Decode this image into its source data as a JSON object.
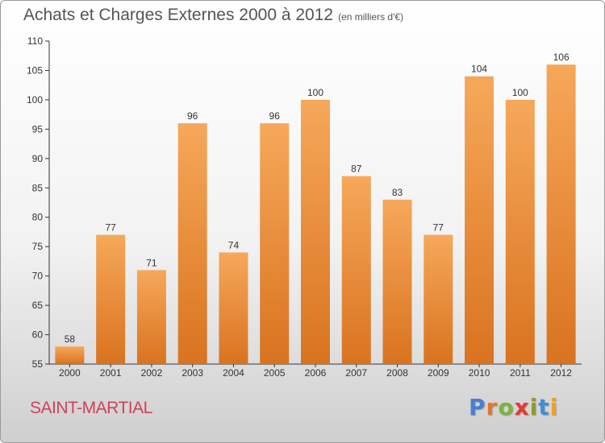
{
  "header": {
    "title": "Achats et Charges Externes 2000 à 2012",
    "subtitle": "(en milliers d'€)"
  },
  "footer": {
    "commune": "SAINT-MARTIAL",
    "logo_letters": [
      "P",
      "r",
      "o",
      "x",
      "i",
      "t",
      "i"
    ]
  },
  "colors": {
    "bar_light": "#f6a85a",
    "bar_dark": "#d9731f",
    "axis": "#333333",
    "grid": "#dddddd",
    "title": "#555555",
    "commune": "#d0405a"
  },
  "chart_data": {
    "type": "bar",
    "title": "Achats et Charges Externes 2000 à 2012",
    "subtitle": "(en milliers d'€)",
    "xlabel": "",
    "ylabel": "",
    "categories": [
      "2000",
      "2001",
      "2002",
      "2003",
      "2004",
      "2005",
      "2006",
      "2007",
      "2008",
      "2009",
      "2010",
      "2011",
      "2012"
    ],
    "values": [
      58,
      77,
      71,
      96,
      74,
      96,
      100,
      87,
      83,
      77,
      104,
      100,
      106
    ],
    "ylim": [
      55,
      110
    ],
    "yticks": [
      55,
      60,
      65,
      70,
      75,
      80,
      85,
      90,
      95,
      100,
      105,
      110
    ],
    "grid": false,
    "legend": "none"
  }
}
